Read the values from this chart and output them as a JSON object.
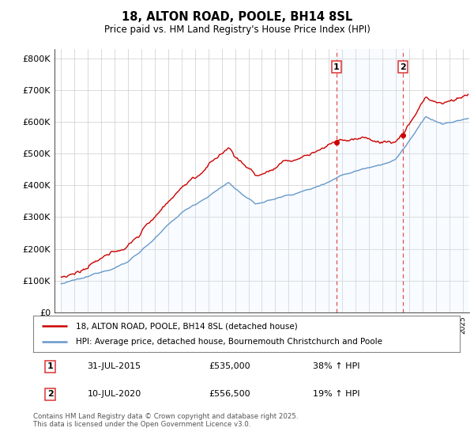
{
  "title": "18, ALTON ROAD, POOLE, BH14 8SL",
  "subtitle": "Price paid vs. HM Land Registry's House Price Index (HPI)",
  "property_label": "18, ALTON ROAD, POOLE, BH14 8SL (detached house)",
  "hpi_label": "HPI: Average price, detached house, Bournemouth Christchurch and Poole",
  "property_color": "#cc0000",
  "hpi_color": "#6699cc",
  "hpi_fill_color": "#ddeeff",
  "vline_color": "#dd3333",
  "sale1_date_label": "31-JUL-2015",
  "sale1_price_label": "£535,000",
  "sale1_hpi_label": "38% ↑ HPI",
  "sale1_x": 2015.58,
  "sale1_val": 535000,
  "sale2_date_label": "10-JUL-2020",
  "sale2_price_label": "£556,500",
  "sale2_hpi_label": "19% ↑ HPI",
  "sale2_x": 2020.53,
  "sale2_val": 556500,
  "yticks": [
    0,
    100000,
    200000,
    300000,
    400000,
    500000,
    600000,
    700000,
    800000
  ],
  "ytick_labels": [
    "£0",
    "£100K",
    "£200K",
    "£300K",
    "£400K",
    "£500K",
    "£600K",
    "£700K",
    "£800K"
  ],
  "xmin": 1994.5,
  "xmax": 2025.5,
  "ymin": 0,
  "ymax": 830000,
  "footnote": "Contains HM Land Registry data © Crown copyright and database right 2025.\nThis data is licensed under the Open Government Licence v3.0.",
  "background_color": "#ffffff",
  "grid_color": "#cccccc"
}
